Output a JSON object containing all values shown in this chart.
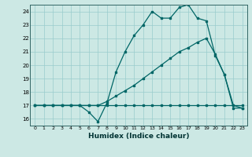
{
  "xlabel": "Humidex (Indice chaleur)",
  "bg_color": "#cce8e4",
  "grid_color": "#99cccc",
  "line_color": "#006666",
  "xlim": [
    -0.5,
    23.5
  ],
  "ylim": [
    15.5,
    24.5
  ],
  "yticks": [
    16,
    17,
    18,
    19,
    20,
    21,
    22,
    23,
    24
  ],
  "xticks": [
    0,
    1,
    2,
    3,
    4,
    5,
    6,
    7,
    8,
    9,
    10,
    11,
    12,
    13,
    14,
    15,
    16,
    17,
    18,
    19,
    20,
    21,
    22,
    23
  ],
  "line1_x": [
    0,
    1,
    2,
    3,
    4,
    5,
    6,
    7,
    8,
    9,
    10,
    11,
    12,
    13,
    14,
    15,
    16,
    17,
    18,
    19,
    20,
    21,
    22,
    23
  ],
  "line1_y": [
    17,
    17,
    17,
    17,
    17,
    17,
    17,
    17,
    17,
    17,
    17,
    17,
    17,
    17,
    17,
    17,
    17,
    17,
    17,
    17,
    17,
    17,
    17,
    17
  ],
  "line2_x": [
    0,
    1,
    2,
    3,
    4,
    5,
    6,
    7,
    8,
    9,
    10,
    11,
    12,
    13,
    14,
    15,
    16,
    17,
    18,
    19,
    20,
    21,
    22,
    23
  ],
  "line2_y": [
    17,
    17,
    17,
    17,
    17,
    17,
    17,
    17,
    17.3,
    17.7,
    18.1,
    18.5,
    19.0,
    19.5,
    20.0,
    20.5,
    21.0,
    21.3,
    21.7,
    22.0,
    20.8,
    19.3,
    17.0,
    16.8
  ],
  "line3_x": [
    0,
    1,
    2,
    3,
    4,
    5,
    6,
    7,
    8,
    9,
    10,
    11,
    12,
    13,
    14,
    15,
    16,
    17,
    18,
    19,
    20,
    21,
    22,
    23
  ],
  "line3_y": [
    17,
    17,
    17,
    17,
    17,
    17,
    16.5,
    15.8,
    17.2,
    19.5,
    21.0,
    22.2,
    23.0,
    24.0,
    23.5,
    23.5,
    24.3,
    24.5,
    23.5,
    23.3,
    20.7,
    19.3,
    16.8,
    16.8
  ]
}
